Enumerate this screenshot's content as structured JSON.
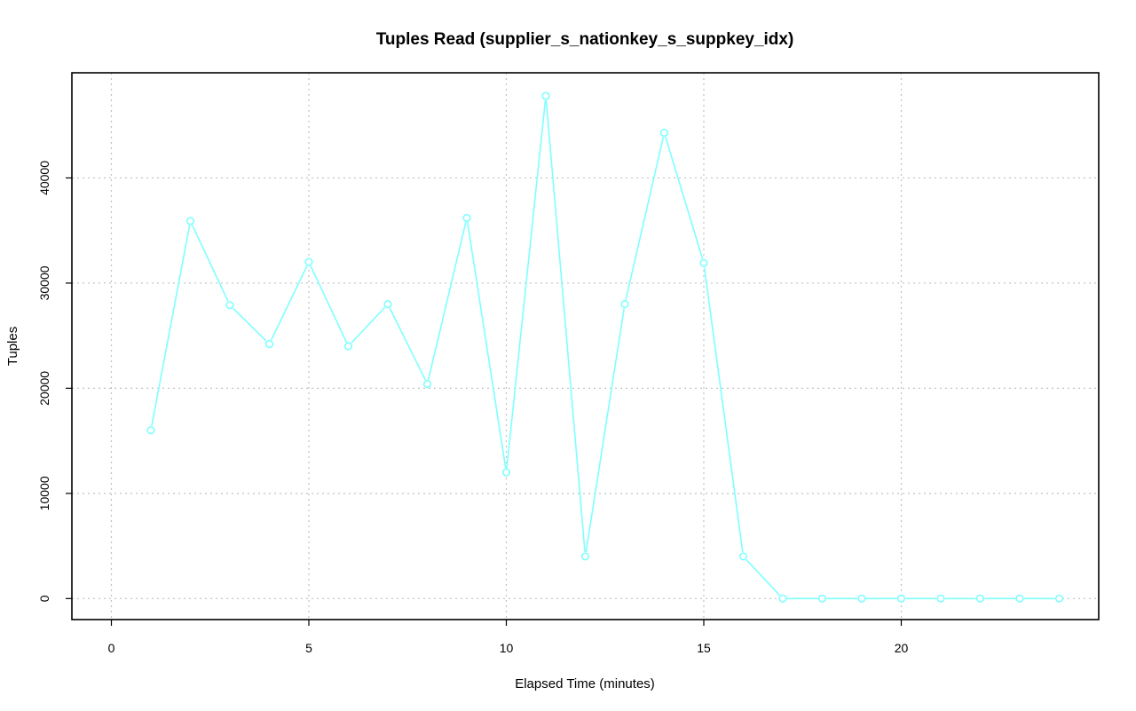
{
  "chart_data": {
    "type": "line",
    "title": "Tuples Read (supplier_s_nationkey_s_suppkey_idx)",
    "xlabel": "Elapsed Time (minutes)",
    "ylabel": "Tuples",
    "xlim": [
      -1,
      25
    ],
    "ylim": [
      -2000,
      50000
    ],
    "x_ticks": [
      0,
      5,
      10,
      15,
      20
    ],
    "y_ticks": [
      0,
      10000,
      20000,
      30000,
      40000
    ],
    "grid": true,
    "color": "#7fffff",
    "series": [
      {
        "x": [
          1,
          2,
          3,
          4,
          5,
          6,
          7,
          8,
          9,
          10,
          11,
          12,
          13,
          14,
          15,
          16,
          17,
          18,
          19,
          20,
          21,
          22,
          23,
          24
        ],
        "values": [
          16000,
          35900,
          27900,
          24200,
          32000,
          24000,
          28000,
          20400,
          36200,
          12000,
          47800,
          4000,
          28000,
          44300,
          31900,
          4000,
          0,
          0,
          0,
          0,
          0,
          0,
          0,
          0
        ]
      }
    ]
  }
}
